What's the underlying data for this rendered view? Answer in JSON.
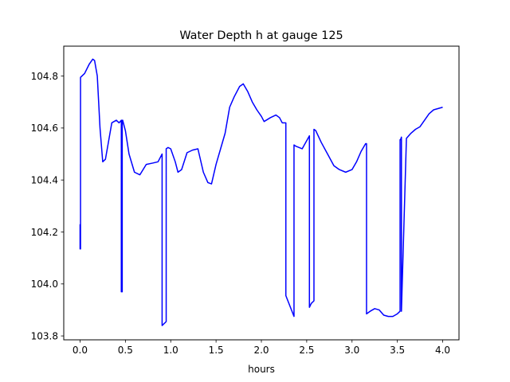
{
  "chart_data": {
    "type": "line",
    "title": "Water Depth h at gauge 125",
    "xlabel": "hours",
    "ylabel": "",
    "xlim": [
      -0.18,
      4.18
    ],
    "ylim": [
      103.785,
      104.915
    ],
    "xticks": [
      0.0,
      0.5,
      1.0,
      1.5,
      2.0,
      2.5,
      3.0,
      3.5,
      4.0
    ],
    "xtick_labels": [
      "0.0",
      "0.5",
      "1.0",
      "1.5",
      "2.0",
      "2.5",
      "3.0",
      "3.5",
      "4.0"
    ],
    "yticks": [
      103.8,
      104.0,
      104.2,
      104.4,
      104.6,
      104.8
    ],
    "ytick_labels": [
      "103.8",
      "104.0",
      "104.2",
      "104.4",
      "104.6",
      "104.8"
    ],
    "grid": false,
    "legend": "none",
    "series": [
      {
        "color": "#0000ff",
        "x": [
          0.0,
          0.0,
          0.005,
          0.005,
          0.05,
          0.1,
          0.14,
          0.16,
          0.19,
          0.22,
          0.25,
          0.28,
          0.31,
          0.35,
          0.4,
          0.43,
          0.455,
          0.455,
          0.465,
          0.465,
          0.47,
          0.5,
          0.54,
          0.6,
          0.66,
          0.73,
          0.8,
          0.86,
          0.905,
          0.905,
          0.95,
          0.95,
          0.97,
          1.0,
          1.05,
          1.08,
          1.12,
          1.18,
          1.24,
          1.3,
          1.36,
          1.41,
          1.45,
          1.5,
          1.55,
          1.6,
          1.65,
          1.7,
          1.76,
          1.8,
          1.85,
          1.9,
          1.95,
          2.0,
          2.03,
          2.1,
          2.16,
          2.2,
          2.23,
          2.27,
          2.27,
          2.36,
          2.36,
          2.38,
          2.45,
          2.53,
          2.53,
          2.55,
          2.58,
          2.58,
          2.6,
          2.66,
          2.73,
          2.8,
          2.86,
          2.93,
          3.0,
          3.05,
          3.1,
          3.15,
          3.16,
          3.16,
          3.2,
          3.25,
          3.3,
          3.35,
          3.4,
          3.45,
          3.5,
          3.53,
          3.53,
          3.535,
          3.545,
          3.545,
          3.6,
          3.65,
          3.7,
          3.75,
          3.8,
          3.85,
          3.9,
          3.95,
          4.0
        ],
        "y": [
          104.23,
          104.135,
          104.135,
          104.795,
          104.81,
          104.845,
          104.865,
          104.86,
          104.8,
          104.6,
          104.47,
          104.48,
          104.54,
          104.62,
          104.63,
          104.62,
          104.63,
          103.97,
          103.97,
          104.63,
          104.63,
          104.59,
          104.5,
          104.43,
          104.42,
          104.46,
          104.465,
          104.47,
          104.5,
          103.84,
          103.855,
          104.52,
          104.525,
          104.52,
          104.47,
          104.43,
          104.44,
          104.505,
          104.515,
          104.52,
          104.43,
          104.39,
          104.385,
          104.46,
          104.52,
          104.58,
          104.68,
          104.72,
          104.76,
          104.77,
          104.74,
          104.7,
          104.67,
          104.645,
          104.625,
          104.64,
          104.65,
          104.64,
          104.62,
          104.62,
          103.955,
          103.875,
          104.535,
          104.53,
          104.52,
          104.57,
          103.91,
          103.925,
          103.935,
          104.595,
          104.59,
          104.545,
          104.5,
          104.455,
          104.44,
          104.43,
          104.44,
          104.47,
          104.51,
          104.54,
          104.54,
          103.885,
          103.895,
          103.905,
          103.9,
          103.88,
          103.875,
          103.875,
          103.885,
          103.895,
          104.555,
          104.555,
          104.565,
          103.895,
          104.56,
          104.58,
          104.595,
          104.605,
          104.63,
          104.655,
          104.67,
          104.675,
          104.68
        ]
      }
    ]
  }
}
